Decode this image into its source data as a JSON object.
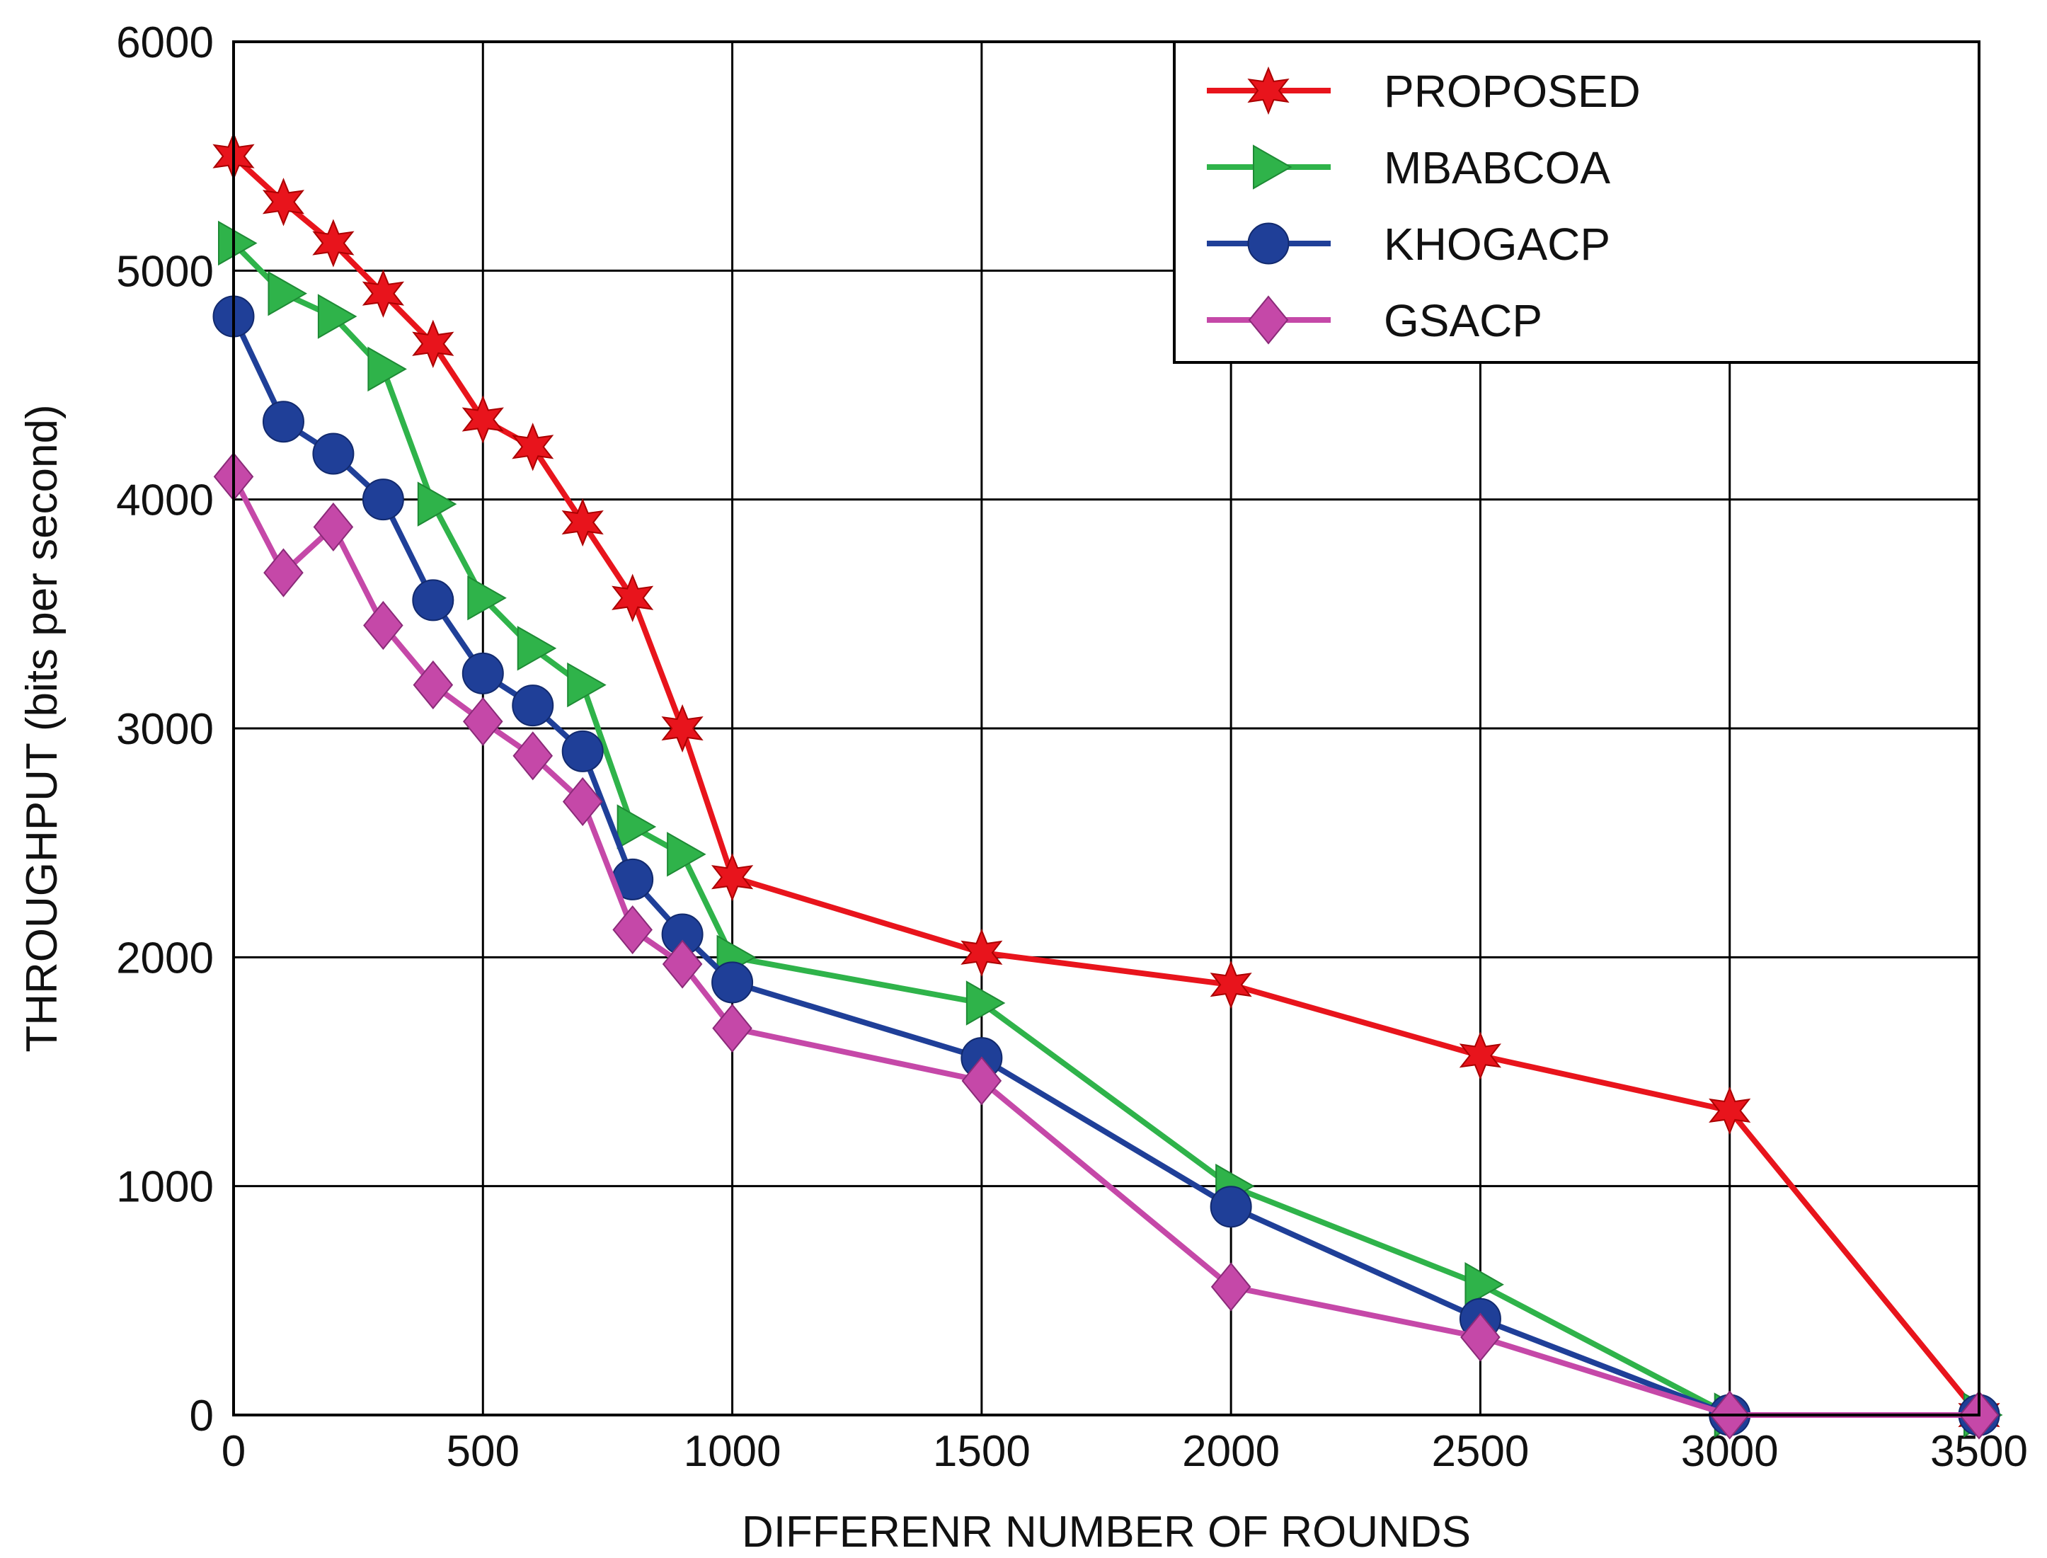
{
  "chart_data": {
    "type": "line",
    "title": "",
    "xlabel": "DIFFERENR NUMBER OF ROUNDS",
    "ylabel": "THROUGHPUT (bits per second)",
    "xlim": [
      0,
      3500
    ],
    "ylim": [
      0,
      6000
    ],
    "xticks": [
      0,
      500,
      1000,
      1500,
      2000,
      2500,
      3000,
      3500
    ],
    "yticks": [
      0,
      1000,
      2000,
      3000,
      4000,
      5000,
      6000
    ],
    "grid": true,
    "legend_position": "top-right",
    "x": [
      0,
      100,
      200,
      300,
      400,
      500,
      600,
      700,
      800,
      900,
      1000,
      1500,
      2000,
      2500,
      3000,
      3500
    ],
    "series": [
      {
        "name": "PROPOSED",
        "color": "#e8141c",
        "marker": "star",
        "values": [
          5500,
          5300,
          5120,
          4900,
          4680,
          4350,
          4230,
          3900,
          3570,
          3000,
          2350,
          2020,
          1880,
          1570,
          1330,
          0
        ]
      },
      {
        "name": "MBABCOA",
        "color": "#2fb34a",
        "marker": "triangle-right",
        "values": [
          5120,
          4900,
          4800,
          4570,
          3980,
          3570,
          3350,
          3190,
          2570,
          2450,
          2000,
          1800,
          1000,
          570,
          0,
          0
        ]
      },
      {
        "name": "KHOGACP",
        "color": "#1f3f98",
        "marker": "circle",
        "values": [
          4800,
          4340,
          4200,
          4000,
          3560,
          3240,
          3100,
          2900,
          2340,
          2100,
          1890,
          1560,
          910,
          420,
          0,
          0
        ]
      },
      {
        "name": "GSACP",
        "color": "#c548a8",
        "marker": "diamond",
        "values": [
          4100,
          3680,
          3880,
          3450,
          3190,
          3030,
          2880,
          2680,
          2120,
          1970,
          1690,
          1460,
          560,
          340,
          0,
          0
        ]
      }
    ]
  }
}
